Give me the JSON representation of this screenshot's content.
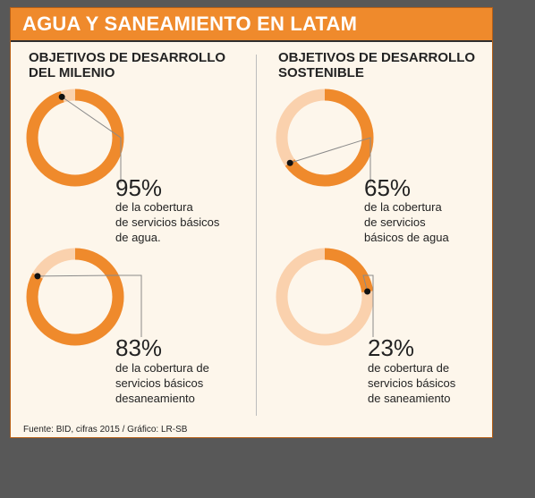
{
  "title": "AGUA Y SANEAMIENTO EN LATAM",
  "columns": [
    {
      "title_lines": [
        "OBJETIVOS DE DESARROLLO",
        "DEL MILENIO"
      ]
    },
    {
      "title_lines": [
        "OBJETIVOS DE DESARROLLO",
        "SOSTENIBLE"
      ]
    }
  ],
  "source": "Fuente: BID, cifras 2015 / Gráfico: LR-SB",
  "colors": {
    "filled": "#ef8a2c",
    "empty": "#fad1ad",
    "header": "#ef8a2c",
    "background": "#fdf6eb"
  },
  "chart_data": [
    {
      "type": "pie",
      "group": "OBJETIVOS DE DESARROLLO DEL MILENIO",
      "value": 95,
      "label": "95%",
      "desc_lines": [
        "de la cobertura",
        "de servicios básicos",
        "de agua."
      ]
    },
    {
      "type": "pie",
      "group": "OBJETIVOS DE DESARROLLO DEL MILENIO",
      "value": 83,
      "label": "83%",
      "desc_lines": [
        "de la cobertura de",
        "servicios básicos",
        "desaneamiento"
      ]
    },
    {
      "type": "pie",
      "group": "OBJETIVOS DE DESARROLLO SOSTENIBLE",
      "value": 65,
      "label": "65%",
      "desc_lines": [
        "de la cobertura",
        "de servicios",
        "básicos de agua"
      ]
    },
    {
      "type": "pie",
      "group": "OBJETIVOS DE DESARROLLO SOSTENIBLE",
      "value": 23,
      "label": "23%",
      "desc_lines": [
        "de cobertura de",
        "servicios básicos",
        "de saneamiento"
      ]
    }
  ]
}
